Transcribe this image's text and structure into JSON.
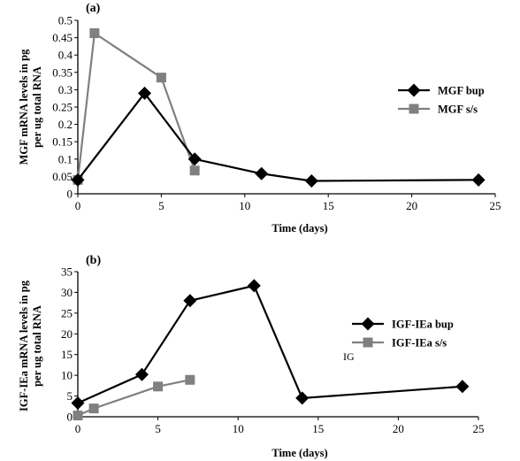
{
  "chart_data": [
    {
      "type": "line",
      "panel_label": "(a)",
      "xlabel": "Time (days)",
      "ylabel": "MGF mRNA levels in pg per ug total RNA",
      "ylabel_lines": [
        "MGF mRNA levels in pg",
        "per ug total RNA"
      ],
      "xlim": [
        0,
        25
      ],
      "ylim": [
        0,
        0.5
      ],
      "xticks": [
        0,
        5,
        10,
        15,
        20,
        25
      ],
      "yticks": [
        0,
        0.05,
        0.1,
        0.15,
        0.2,
        0.25,
        0.3,
        0.35,
        0.4,
        0.45,
        0.5
      ],
      "ytick_labels": [
        "0",
        "0.05",
        "0.1",
        "0.15",
        "0.2",
        "0.25",
        "0.3",
        "0.35",
        "0.4",
        "0.45",
        "0.5"
      ],
      "grid": false,
      "legend_position": "right",
      "series": [
        {
          "name": "MGF bup",
          "marker": "diamond",
          "color": "#000000",
          "x": [
            0,
            4,
            7,
            11,
            14,
            24
          ],
          "y": [
            0.04,
            0.29,
            0.1,
            0.058,
            0.037,
            0.04
          ]
        },
        {
          "name": "MGF s/s",
          "marker": "square",
          "color": "#808080",
          "x": [
            0,
            1,
            5,
            7
          ],
          "y": [
            0.04,
            0.463,
            0.335,
            0.067
          ]
        }
      ],
      "annotations": []
    },
    {
      "type": "line",
      "panel_label": "(b)",
      "xlabel": "Time (days)",
      "ylabel": "IGF-IEa mRNA levels in pg per ug total RNA",
      "ylabel_lines": [
        "IGF-IEa mRNA levels in pg",
        "per ug total RNA"
      ],
      "xlim": [
        0,
        25
      ],
      "ylim": [
        0,
        35
      ],
      "xticks": [
        0,
        5,
        10,
        15,
        20,
        25
      ],
      "yticks": [
        0,
        5,
        10,
        15,
        20,
        25,
        30,
        35
      ],
      "ytick_labels": [
        "0",
        "5",
        "10",
        "15",
        "20",
        "25",
        "30",
        "35"
      ],
      "grid": false,
      "legend_position": "right",
      "series": [
        {
          "name": "IGF-IEa bup",
          "marker": "diamond",
          "color": "#000000",
          "x": [
            0,
            4,
            7,
            11,
            14,
            24
          ],
          "y": [
            3.3,
            10.2,
            28,
            31.6,
            4.5,
            7.3
          ]
        },
        {
          "name": "IGF-IEa s/s",
          "marker": "square",
          "color": "#808080",
          "x": [
            0,
            1,
            5,
            7
          ],
          "y": [
            0.3,
            2,
            7.3,
            8.9
          ]
        }
      ],
      "annotations": [
        "IG"
      ]
    }
  ]
}
